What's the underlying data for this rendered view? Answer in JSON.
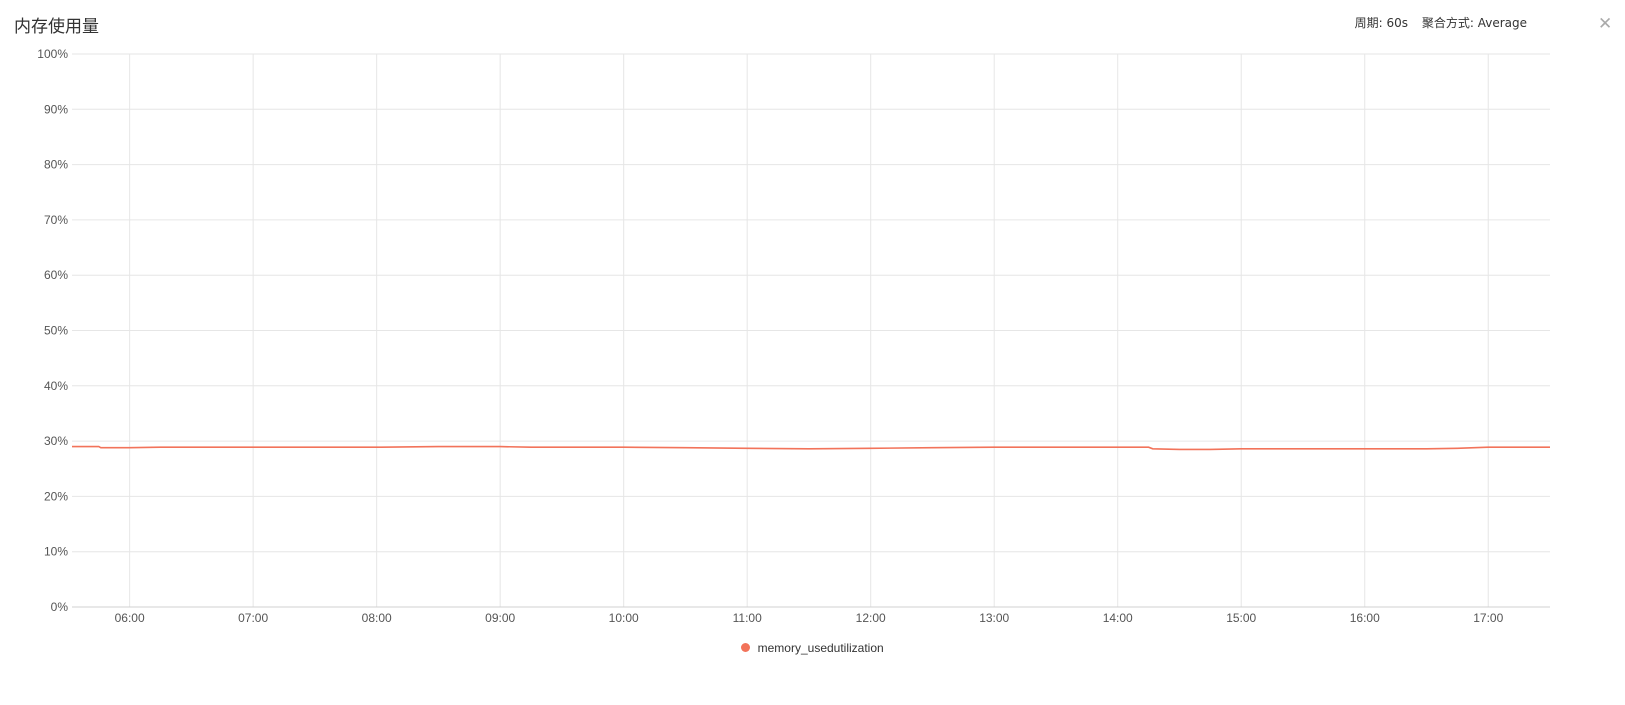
{
  "header": {
    "title": "内存使用量",
    "period": "周期: 60s",
    "aggregation": "聚合方式: Average",
    "close_icon": "close-icon"
  },
  "colors": {
    "series": "#f2735a",
    "grid": "#e6e6e6"
  },
  "chart_data": {
    "type": "line",
    "title": "内存使用量",
    "xlabel": "",
    "ylabel": "",
    "x_ticks": [
      "06:00",
      "07:00",
      "08:00",
      "09:00",
      "10:00",
      "11:00",
      "12:00",
      "13:00",
      "14:00",
      "15:00",
      "16:00",
      "17:00"
    ],
    "y_ticks": [
      "0%",
      "10%",
      "20%",
      "30%",
      "40%",
      "50%",
      "60%",
      "70%",
      "80%",
      "90%",
      "100%"
    ],
    "xlim": [
      "05:32",
      "17:30"
    ],
    "ylim": [
      0,
      100
    ],
    "grid": true,
    "legend_position": "bottom-center",
    "series": [
      {
        "name": "memory_usedutilization",
        "x": [
          "05:32",
          "05:45",
          "05:46",
          "06:00",
          "06:15",
          "07:00",
          "08:00",
          "08:30",
          "09:00",
          "09:15",
          "09:30",
          "10:00",
          "10:30",
          "11:00",
          "11:30",
          "12:00",
          "12:30",
          "13:00",
          "13:30",
          "14:00",
          "14:15",
          "14:17",
          "14:30",
          "14:45",
          "15:00",
          "15:30",
          "16:00",
          "16:30",
          "16:45",
          "17:00",
          "17:30"
        ],
        "values": [
          29.0,
          29.0,
          28.8,
          28.8,
          28.9,
          28.9,
          28.9,
          29.0,
          29.0,
          28.9,
          28.9,
          28.9,
          28.8,
          28.7,
          28.6,
          28.7,
          28.8,
          28.9,
          28.9,
          28.9,
          28.9,
          28.6,
          28.5,
          28.5,
          28.6,
          28.6,
          28.6,
          28.6,
          28.7,
          28.9,
          28.9
        ]
      }
    ]
  }
}
